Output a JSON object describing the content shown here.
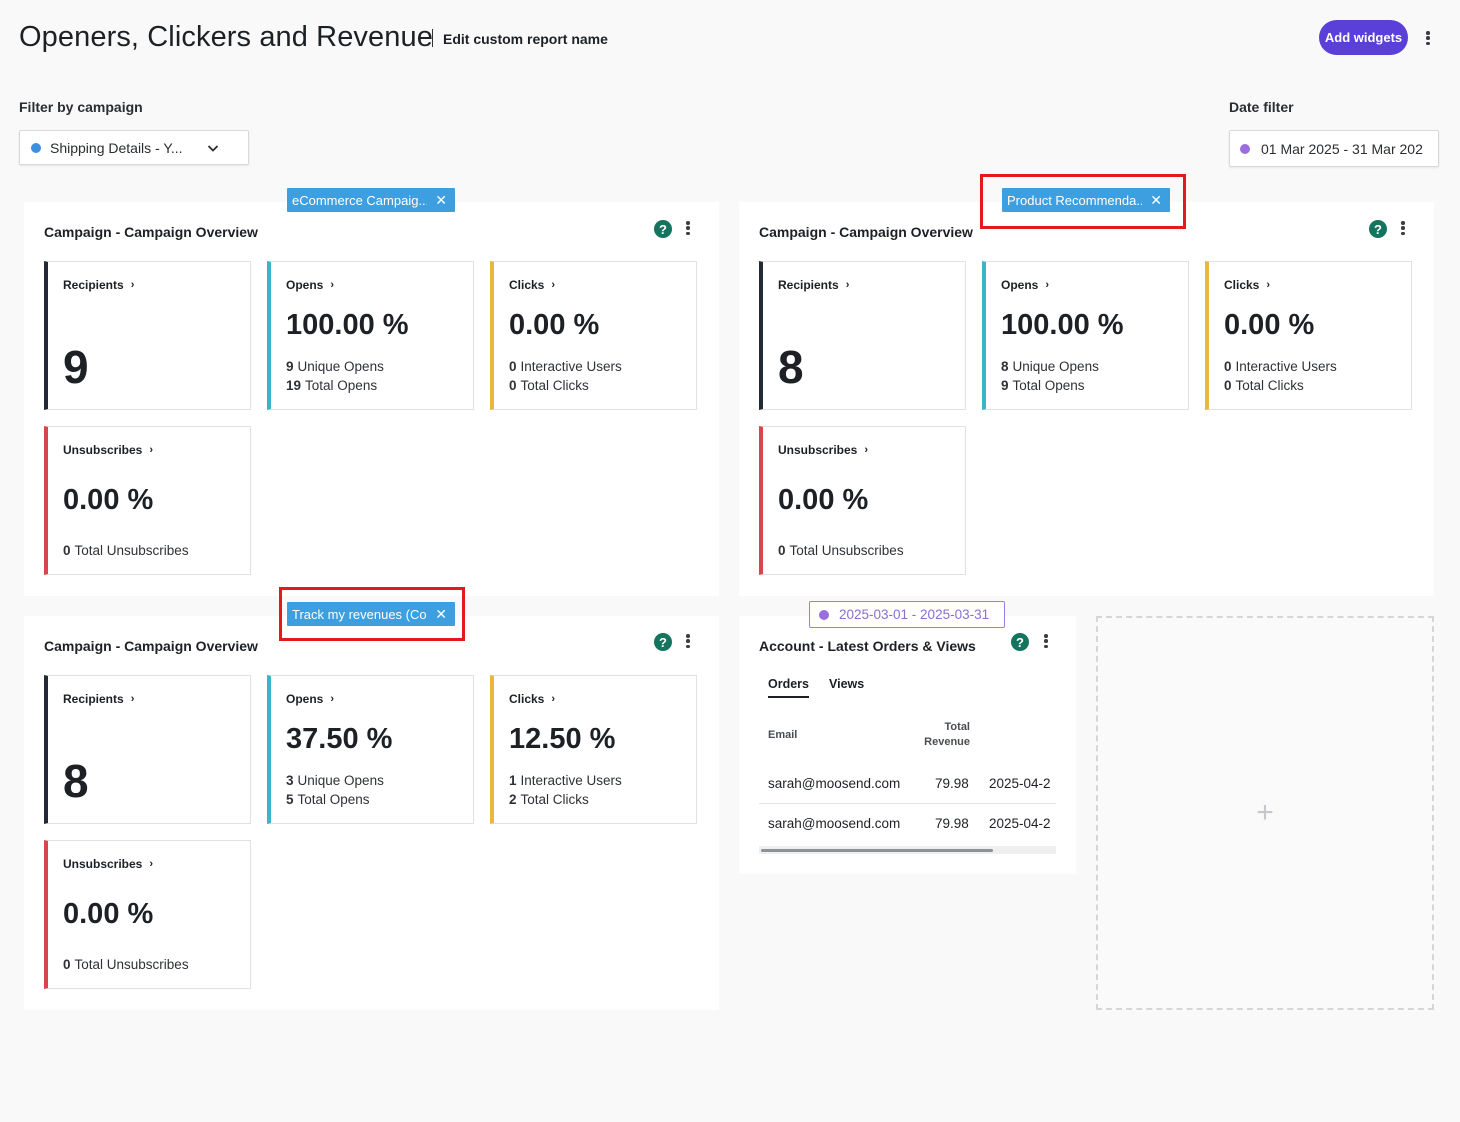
{
  "header": {
    "title": "Openers, Clickers and Revenue",
    "edit_label": "Edit custom report name",
    "add_widgets_label": "Add widgets"
  },
  "filters": {
    "campaign_label": "Filter by campaign",
    "campaign_value": "Shipping Details - Y...",
    "campaign_dot_color": "#3d8fe0",
    "date_label": "Date filter",
    "date_value": "01 Mar 2025 - 31 Mar 202",
    "date_dot_color": "#9b6ee0"
  },
  "colors": {
    "accent": "#5a3fd8",
    "tag_blue": "#3d9fe0",
    "help_green": "#15745e",
    "highlight_red": "#e3191c",
    "recipients_bar": "#232a36",
    "opens_bar": "#3bb6c6",
    "clicks_bar": "#eab73c",
    "unsubscribes_bar": "#d9454a"
  },
  "widgets": [
    {
      "tag": "eCommerce Campaig...",
      "title": "Campaign - Campaign Overview",
      "recipients": {
        "label": "Recipients",
        "value": "9"
      },
      "opens": {
        "label": "Opens",
        "pct": "100.00 %",
        "line1_num": "9",
        "line1_text": "Unique Opens",
        "line2_num": "19",
        "line2_text": "Total Opens"
      },
      "clicks": {
        "label": "Clicks",
        "pct": "0.00 %",
        "line1_num": "0",
        "line1_text": "Interactive Users",
        "line2_num": "0",
        "line2_text": "Total Clicks"
      },
      "unsubscribes": {
        "label": "Unsubscribes",
        "pct": "0.00 %",
        "line1_num": "0",
        "line1_text": "Total Unsubscribes"
      }
    },
    {
      "tag": "Product Recommenda...",
      "title": "Campaign - Campaign Overview",
      "recipients": {
        "label": "Recipients",
        "value": "8"
      },
      "opens": {
        "label": "Opens",
        "pct": "100.00 %",
        "line1_num": "8",
        "line1_text": "Unique Opens",
        "line2_num": "9",
        "line2_text": "Total Opens"
      },
      "clicks": {
        "label": "Clicks",
        "pct": "0.00 %",
        "line1_num": "0",
        "line1_text": "Interactive Users",
        "line2_num": "0",
        "line2_text": "Total Clicks"
      },
      "unsubscribes": {
        "label": "Unsubscribes",
        "pct": "0.00 %",
        "line1_num": "0",
        "line1_text": "Total Unsubscribes"
      }
    },
    {
      "tag": "Track my revenues (Co...",
      "title": "Campaign - Campaign Overview",
      "recipients": {
        "label": "Recipients",
        "value": "8"
      },
      "opens": {
        "label": "Opens",
        "pct": "37.50 %",
        "line1_num": "3",
        "line1_text": "Unique Opens",
        "line2_num": "5",
        "line2_text": "Total Opens"
      },
      "clicks": {
        "label": "Clicks",
        "pct": "12.50 %",
        "line1_num": "1",
        "line1_text": "Interactive Users",
        "line2_num": "2",
        "line2_text": "Total Clicks"
      },
      "unsubscribes": {
        "label": "Unsubscribes",
        "pct": "0.00 %",
        "line1_num": "0",
        "line1_text": "Total Unsubscribes"
      }
    }
  ],
  "orders_widget": {
    "date_badge": "2025-03-01 - 2025-03-31",
    "title": "Account - Latest Orders & Views",
    "tabs": [
      "Orders",
      "Views"
    ],
    "columns": {
      "email": "Email",
      "revenue_line1": "Total",
      "revenue_line2": "Revenue"
    },
    "rows": [
      {
        "email": "sarah@moosend.com",
        "revenue": "79.98",
        "date": "2025-04-2"
      },
      {
        "email": "sarah@moosend.com",
        "revenue": "79.98",
        "date": "2025-04-2"
      }
    ]
  },
  "empty_slot": {
    "icon": "plus-icon",
    "glyph": "+"
  },
  "icons": {
    "help": "?",
    "chevron": "›",
    "close": "✕",
    "dropdown": "chevron-down-icon"
  }
}
